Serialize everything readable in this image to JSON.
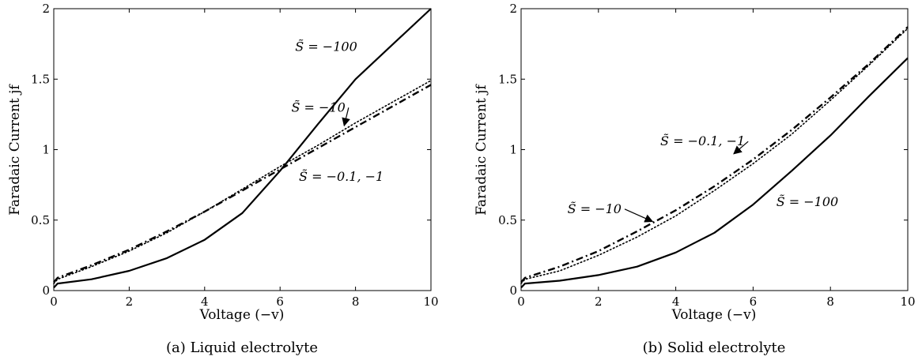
{
  "chart_data": [
    {
      "type": "line",
      "caption": "(a) Liquid electrolyte",
      "xlabel": "Voltage (−v)",
      "ylabel": "Faradaic Current jf",
      "xlim": [
        0,
        10
      ],
      "ylim": [
        0,
        2
      ],
      "xticks": [
        "0",
        "2",
        "4",
        "6",
        "8",
        "10"
      ],
      "yticks": [
        "0",
        "0.5",
        "1",
        "1.5",
        "2"
      ],
      "series": [
        {
          "style": "solid",
          "color": "#000000",
          "x": [
            0,
            0.1,
            1,
            2,
            3,
            4,
            5,
            6,
            7,
            8,
            9,
            10
          ],
          "y": [
            0.02,
            0.05,
            0.08,
            0.14,
            0.23,
            0.36,
            0.55,
            0.85,
            1.18,
            1.5,
            1.75,
            2.0
          ]
        },
        {
          "style": "dotted",
          "color": "#000000",
          "x": [
            0,
            0.1,
            1,
            2,
            3,
            4,
            5,
            6,
            7,
            8,
            9,
            10
          ],
          "y": [
            0.05,
            0.08,
            0.17,
            0.28,
            0.41,
            0.56,
            0.72,
            0.88,
            1.03,
            1.19,
            1.34,
            1.49
          ]
        },
        {
          "style": "dashdot",
          "color": "#000000",
          "x": [
            0,
            0.1,
            1,
            2,
            3,
            4,
            5,
            6,
            7,
            8,
            9,
            10
          ],
          "y": [
            0.06,
            0.09,
            0.18,
            0.29,
            0.42,
            0.56,
            0.71,
            0.86,
            1.01,
            1.16,
            1.31,
            1.46
          ]
        }
      ],
      "annotations": [
        {
          "text": "S̃ = −100",
          "x": 6.4,
          "y": 1.7
        },
        {
          "text": "S̃ = −10",
          "x": 6.3,
          "y": 1.27,
          "arrow_to": [
            7.7,
            1.17
          ]
        },
        {
          "text": "S̃ = −0.1, −1",
          "x": 6.5,
          "y": 0.78
        }
      ]
    },
    {
      "type": "line",
      "caption": "(b) Solid electrolyte",
      "xlabel": "Voltage (−v)",
      "ylabel": "Faradaic Current jf",
      "xlim": [
        0,
        10
      ],
      "ylim": [
        0,
        2
      ],
      "xticks": [
        "0",
        "2",
        "4",
        "6",
        "8",
        "10"
      ],
      "yticks": [
        "0",
        "0.5",
        "1",
        "1.5",
        "2"
      ],
      "series": [
        {
          "style": "solid",
          "color": "#000000",
          "x": [
            0,
            0.1,
            1,
            2,
            3,
            4,
            5,
            6,
            7,
            8,
            9,
            10
          ],
          "y": [
            0.02,
            0.05,
            0.07,
            0.11,
            0.17,
            0.27,
            0.41,
            0.61,
            0.85,
            1.1,
            1.38,
            1.65
          ]
        },
        {
          "style": "dotted",
          "color": "#000000",
          "x": [
            0,
            0.1,
            1,
            2,
            3,
            4,
            5,
            6,
            7,
            8,
            9,
            10
          ],
          "y": [
            0.05,
            0.08,
            0.14,
            0.25,
            0.38,
            0.53,
            0.71,
            0.9,
            1.11,
            1.35,
            1.6,
            1.86
          ]
        },
        {
          "style": "dashdot",
          "color": "#000000",
          "x": [
            0,
            0.1,
            1,
            2,
            3,
            4,
            5,
            6,
            7,
            8,
            9,
            10
          ],
          "y": [
            0.06,
            0.09,
            0.17,
            0.28,
            0.42,
            0.57,
            0.74,
            0.93,
            1.14,
            1.37,
            1.61,
            1.87
          ]
        }
      ],
      "annotations": [
        {
          "text": "S̃ = −0.1, −1",
          "x": 3.6,
          "y": 1.03,
          "arrow_to": [
            5.5,
            0.97
          ]
        },
        {
          "text": "S̃ = −10",
          "x": 1.2,
          "y": 0.55,
          "arrow_to": [
            3.4,
            0.49
          ]
        },
        {
          "text": "S̃ = −100",
          "x": 6.6,
          "y": 0.6
        }
      ]
    }
  ]
}
